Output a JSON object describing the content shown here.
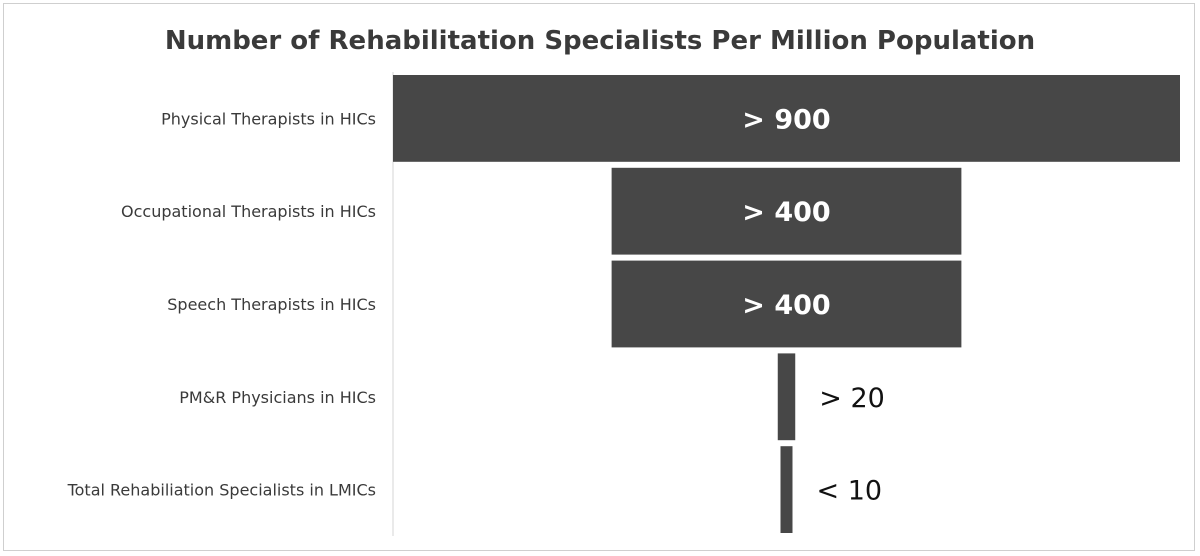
{
  "chart_data": {
    "type": "bar",
    "orientation": "horizontal-funnel",
    "title": "Number of Rehabilitation Specialists Per Million Population",
    "categories": [
      "Physical Therapists in HICs",
      "Occupational Therapists in HICs",
      "Speech Therapists in HICs",
      "PM&R Physicians in HICs",
      "Total Rehabiliation Specialists in LMICs"
    ],
    "values": [
      900,
      400,
      400,
      20,
      10
    ],
    "data_labels": [
      "> 900",
      "> 400",
      "> 400",
      "> 20",
      "< 10"
    ],
    "xlim": [
      0,
      900
    ],
    "bar_color": "#474747",
    "grid": false,
    "legend": "none"
  }
}
